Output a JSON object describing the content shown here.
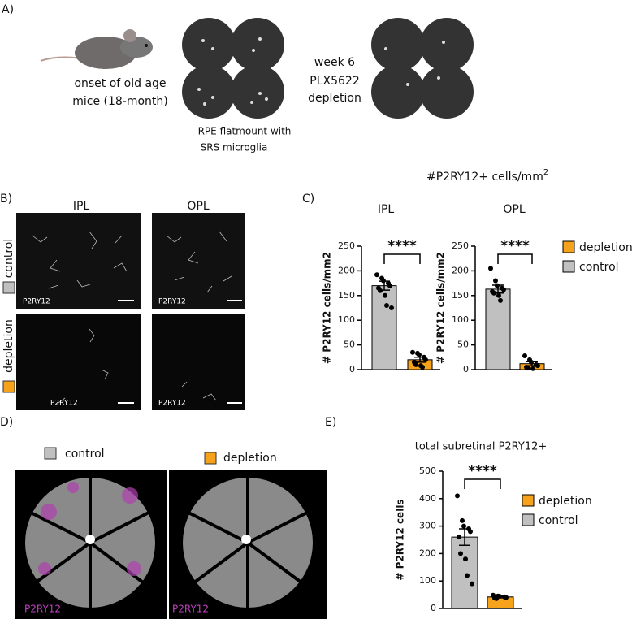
{
  "figure": {
    "panel_labels": [
      "A)",
      "B)",
      "C)",
      "D)",
      "E)"
    ],
    "panel_a": {
      "mouse_text": [
        "onset of old age",
        "mice (18-month)"
      ],
      "flatmount_text": [
        "RPE flatmount with",
        "SRS microglia"
      ],
      "treatment_text": [
        "week 6",
        "PLX5622",
        "depletion"
      ]
    },
    "panel_b": {
      "columns": [
        "IPL",
        "OPL"
      ],
      "rows": [
        "control",
        "depletion"
      ],
      "stain": "P2RY12"
    },
    "panel_c": {
      "title": "#P2RY12+ cells/mm",
      "title_superscript": "2"
    },
    "panel_d": {
      "groups": [
        "control",
        "depletion"
      ],
      "stain": "P2RY12"
    }
  },
  "chart_data": [
    {
      "type": "bar",
      "title": "IPL",
      "ylabel": "# P2RY12 cells/mm2",
      "ylim": [
        0,
        250
      ],
      "yticks": [
        0,
        50,
        100,
        150,
        200,
        250
      ],
      "annotation": "****",
      "legend": false,
      "series": [
        {
          "color": "#f7a21b",
          "values": [
            20
          ],
          "errors": [
            5
          ],
          "points": [
            35,
            33,
            30,
            25,
            20,
            15,
            10,
            8,
            5
          ]
        },
        {
          "color": "#c0c0c0",
          "values": [
            170
          ],
          "errors": [
            9
          ],
          "points": [
            192,
            185,
            180,
            175,
            170,
            165,
            160,
            150,
            130,
            125
          ]
        }
      ]
    },
    {
      "type": "bar",
      "title": "OPL",
      "ylabel": "# P2RY12 cells/mm2",
      "ylim": [
        0,
        250
      ],
      "yticks": [
        0,
        50,
        100,
        150,
        200,
        250
      ],
      "annotation": "****",
      "legend": true,
      "series": [
        {
          "name": "depletion",
          "color": "#f7a21b",
          "values": [
            12
          ],
          "errors": [
            4
          ],
          "points": [
            28,
            20,
            15,
            10,
            8,
            5,
            3,
            2
          ]
        },
        {
          "name": "control",
          "color": "#c0c0c0",
          "values": [
            163
          ],
          "errors": [
            8
          ],
          "points": [
            205,
            180,
            170,
            165,
            162,
            158,
            155,
            150,
            140
          ]
        }
      ]
    },
    {
      "type": "bar",
      "title": "total subretinal P2RY12+",
      "ylabel": "# P2RY12 cells",
      "ylim": [
        0,
        500
      ],
      "yticks": [
        0,
        100,
        200,
        300,
        400,
        500
      ],
      "annotation": "****",
      "legend": true,
      "series": [
        {
          "name": "depletion",
          "color": "#f7a21b",
          "values": [
            42
          ],
          "errors": [
            3
          ],
          "points": [
            48,
            45,
            44,
            42,
            40,
            38,
            36
          ]
        },
        {
          "name": "control",
          "color": "#c0c0c0",
          "values": [
            260
          ],
          "errors": [
            30
          ],
          "points": [
            410,
            320,
            300,
            290,
            280,
            260,
            200,
            180,
            120,
            90
          ]
        }
      ]
    }
  ]
}
